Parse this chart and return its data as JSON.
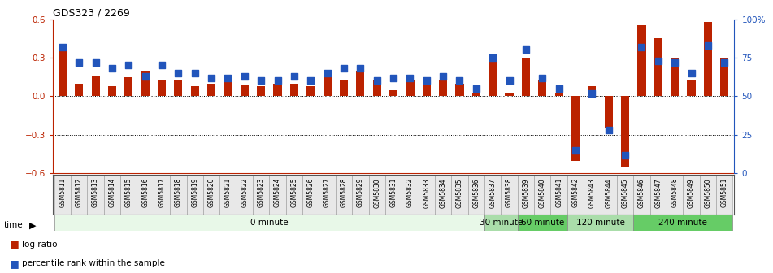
{
  "title": "GDS323 / 2269",
  "samples": [
    "GSM5811",
    "GSM5812",
    "GSM5813",
    "GSM5814",
    "GSM5815",
    "GSM5816",
    "GSM5817",
    "GSM5818",
    "GSM5819",
    "GSM5820",
    "GSM5821",
    "GSM5822",
    "GSM5823",
    "GSM5824",
    "GSM5825",
    "GSM5826",
    "GSM5827",
    "GSM5828",
    "GSM5829",
    "GSM5830",
    "GSM5831",
    "GSM5832",
    "GSM5833",
    "GSM5834",
    "GSM5835",
    "GSM5836",
    "GSM5837",
    "GSM5838",
    "GSM5839",
    "GSM5840",
    "GSM5841",
    "GSM5842",
    "GSM5843",
    "GSM5844",
    "GSM5845",
    "GSM5846",
    "GSM5847",
    "GSM5848",
    "GSM5849",
    "GSM5850",
    "GSM5851"
  ],
  "log_ratio": [
    0.38,
    0.1,
    0.16,
    0.08,
    0.15,
    0.2,
    0.13,
    0.13,
    0.08,
    0.1,
    0.12,
    0.09,
    0.08,
    0.1,
    0.1,
    0.08,
    0.15,
    0.13,
    0.2,
    0.12,
    0.05,
    0.12,
    0.1,
    0.13,
    0.1,
    0.03,
    0.3,
    0.02,
    0.3,
    0.12,
    0.02,
    -0.5,
    0.08,
    -0.25,
    -0.55,
    0.55,
    0.45,
    0.3,
    0.13,
    0.58,
    0.3
  ],
  "percentile": [
    82,
    72,
    72,
    68,
    70,
    63,
    70,
    65,
    65,
    62,
    62,
    63,
    60,
    60,
    63,
    60,
    65,
    68,
    68,
    60,
    62,
    62,
    60,
    63,
    60,
    55,
    75,
    60,
    80,
    62,
    55,
    15,
    52,
    28,
    12,
    82,
    73,
    72,
    65,
    83,
    72
  ],
  "bar_color": "#bb2200",
  "dot_color": "#2255bb",
  "ylim_left": [
    -0.6,
    0.6
  ],
  "ylim_right": [
    0,
    100
  ],
  "yticks_left": [
    -0.6,
    -0.3,
    0.0,
    0.3,
    0.6
  ],
  "yticks_right": [
    0,
    25,
    50,
    75,
    100
  ],
  "ytick_labels_right": [
    "0",
    "25",
    "50",
    "75",
    "100%"
  ],
  "hlines": [
    -0.3,
    0.0,
    0.3
  ],
  "groups": [
    {
      "label": "0 minute",
      "start": 0,
      "end": 26,
      "color": "#e8f8e8"
    },
    {
      "label": "30 minute",
      "start": 26,
      "end": 28,
      "color": "#aaddaa"
    },
    {
      "label": "60 minute",
      "start": 28,
      "end": 31,
      "color": "#66cc66"
    },
    {
      "label": "120 minute",
      "start": 31,
      "end": 35,
      "color": "#aaddaa"
    },
    {
      "label": "240 minute",
      "start": 35,
      "end": 41,
      "color": "#66cc66"
    }
  ],
  "time_label": "time",
  "legend": [
    {
      "label": "log ratio",
      "color": "#bb2200"
    },
    {
      "label": "percentile rank within the sample",
      "color": "#2255bb"
    }
  ],
  "bar_width": 0.5,
  "dot_size": 28,
  "label_fontsize": 5.5,
  "group_fontsize": 7.5,
  "ytick_fontsize": 7.5,
  "title_fontsize": 9
}
